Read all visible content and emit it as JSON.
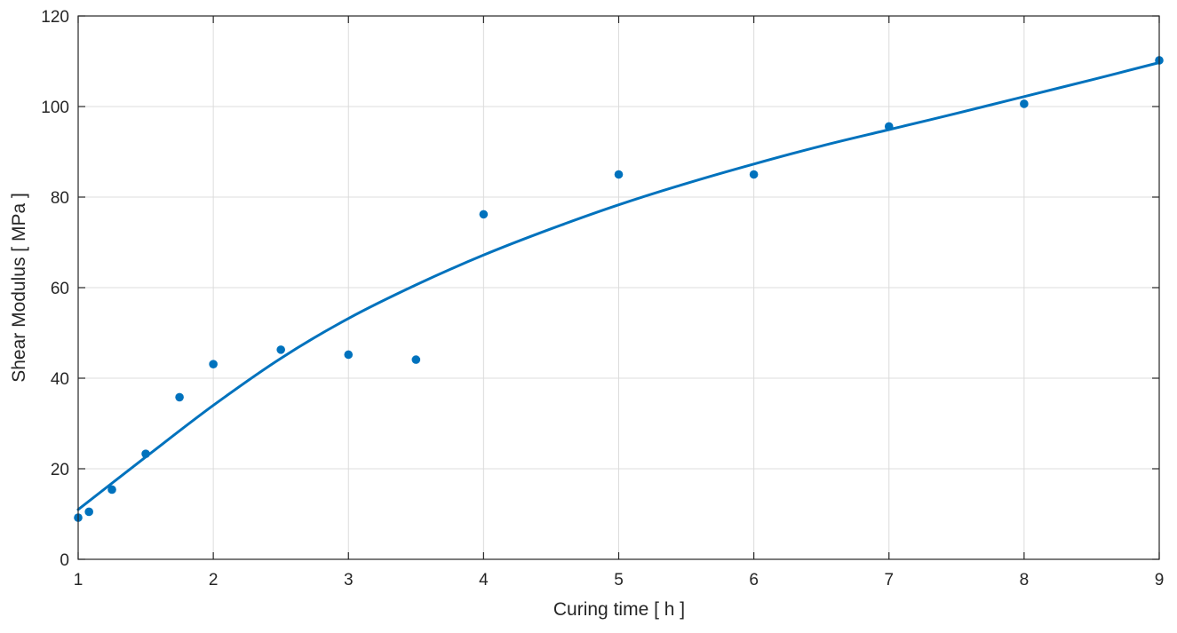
{
  "chart_data": {
    "type": "scatter",
    "xlabel": "Curing time [ h ]",
    "ylabel": "Shear Modulus [ MPa ]",
    "xlim": [
      1,
      9
    ],
    "ylim": [
      0,
      120
    ],
    "xticks": [
      1,
      2,
      3,
      4,
      5,
      6,
      7,
      8,
      9
    ],
    "yticks": [
      0,
      20,
      40,
      60,
      80,
      100,
      120
    ],
    "grid": true,
    "legend": "none",
    "series": [
      {
        "type": "scatter",
        "color": "#0072BD",
        "points": [
          {
            "x": 1.0,
            "y": 9.2
          },
          {
            "x": 1.08,
            "y": 10.5
          },
          {
            "x": 1.25,
            "y": 15.4
          },
          {
            "x": 1.5,
            "y": 23.3
          },
          {
            "x": 1.75,
            "y": 35.8
          },
          {
            "x": 2.0,
            "y": 43.1
          },
          {
            "x": 2.5,
            "y": 46.3
          },
          {
            "x": 3.0,
            "y": 45.2
          },
          {
            "x": 3.5,
            "y": 44.1
          },
          {
            "x": 4.0,
            "y": 76.2
          },
          {
            "x": 5.0,
            "y": 85.0
          },
          {
            "x": 6.0,
            "y": 85.0
          },
          {
            "x": 7.0,
            "y": 95.6
          },
          {
            "x": 8.0,
            "y": 100.6
          },
          {
            "x": 9.0,
            "y": 110.2
          }
        ]
      },
      {
        "type": "line",
        "color": "#0072BD",
        "points": [
          {
            "x": 1.0,
            "y": 11.0
          },
          {
            "x": 1.5,
            "y": 22.6
          },
          {
            "x": 2.0,
            "y": 34.0
          },
          {
            "x": 2.5,
            "y": 44.4
          },
          {
            "x": 3.0,
            "y": 53.2
          },
          {
            "x": 3.5,
            "y": 60.6
          },
          {
            "x": 4.0,
            "y": 67.2
          },
          {
            "x": 4.5,
            "y": 73.0
          },
          {
            "x": 5.0,
            "y": 78.3
          },
          {
            "x": 5.5,
            "y": 83.0
          },
          {
            "x": 6.0,
            "y": 87.3
          },
          {
            "x": 6.5,
            "y": 91.3
          },
          {
            "x": 7.0,
            "y": 94.9
          },
          {
            "x": 7.5,
            "y": 98.5
          },
          {
            "x": 8.0,
            "y": 102.2
          },
          {
            "x": 8.5,
            "y": 105.9
          },
          {
            "x": 9.0,
            "y": 109.7
          }
        ]
      }
    ]
  }
}
